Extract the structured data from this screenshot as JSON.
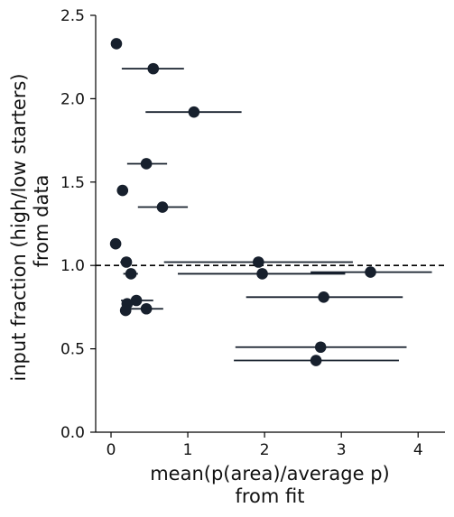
{
  "chart_data": {
    "type": "scatter",
    "title": "",
    "xlabel": [
      "mean(p(area)/average p)",
      "from fit"
    ],
    "ylabel": [
      "input fraction (high/low starters)",
      "from data"
    ],
    "xlim": [
      -0.2,
      4.35
    ],
    "ylim": [
      0.0,
      2.5
    ],
    "x_ticks": [
      0,
      1,
      2,
      3,
      4
    ],
    "x_tick_labels": [
      "0",
      "1",
      "2",
      "3",
      "4"
    ],
    "y_ticks": [
      0.0,
      0.5,
      1.0,
      1.5,
      2.0,
      2.5
    ],
    "y_tick_labels": [
      "0.0",
      "0.5",
      "1.0",
      "1.5",
      "2.0",
      "2.5"
    ],
    "reference_line": {
      "y": 1.0,
      "style": "dashed"
    },
    "grid": false,
    "points": [
      {
        "x": 0.07,
        "y": 2.33,
        "xerr_low": 0.07,
        "xerr_high": 0.07
      },
      {
        "x": 0.55,
        "y": 2.18,
        "xerr_low": 0.14,
        "xerr_high": 0.95
      },
      {
        "x": 1.08,
        "y": 1.92,
        "xerr_low": 0.45,
        "xerr_high": 1.7
      },
      {
        "x": 0.46,
        "y": 1.61,
        "xerr_low": 0.21,
        "xerr_high": 0.73
      },
      {
        "x": 0.15,
        "y": 1.45,
        "xerr_low": 0.1,
        "xerr_high": 0.22
      },
      {
        "x": 0.67,
        "y": 1.35,
        "xerr_low": 0.35,
        "xerr_high": 1.0
      },
      {
        "x": 0.06,
        "y": 1.13,
        "xerr_low": 0.06,
        "xerr_high": 0.06
      },
      {
        "x": 1.92,
        "y": 1.02,
        "xerr_low": 0.69,
        "xerr_high": 3.15
      },
      {
        "x": 0.2,
        "y": 1.02,
        "xerr_low": 0.12,
        "xerr_high": 0.27
      },
      {
        "x": 0.26,
        "y": 0.95,
        "xerr_low": 0.16,
        "xerr_high": 0.35
      },
      {
        "x": 1.97,
        "y": 0.95,
        "xerr_low": 0.87,
        "xerr_high": 3.05
      },
      {
        "x": 3.38,
        "y": 0.96,
        "xerr_low": 2.6,
        "xerr_high": 4.18
      },
      {
        "x": 0.33,
        "y": 0.79,
        "xerr_low": 0.13,
        "xerr_high": 0.55
      },
      {
        "x": 0.21,
        "y": 0.77,
        "xerr_low": 0.14,
        "xerr_high": 0.29
      },
      {
        "x": 0.46,
        "y": 0.74,
        "xerr_low": 0.15,
        "xerr_high": 0.68
      },
      {
        "x": 0.19,
        "y": 0.73,
        "xerr_low": 0.12,
        "xerr_high": 0.26
      },
      {
        "x": 2.77,
        "y": 0.81,
        "xerr_low": 1.76,
        "xerr_high": 3.8
      },
      {
        "x": 2.73,
        "y": 0.51,
        "xerr_low": 1.62,
        "xerr_high": 3.85
      },
      {
        "x": 2.67,
        "y": 0.43,
        "xerr_low": 1.6,
        "xerr_high": 3.75
      }
    ],
    "colors": {
      "marker": "#17202d",
      "errorbar": "#17202d",
      "axis": "#000000"
    }
  }
}
